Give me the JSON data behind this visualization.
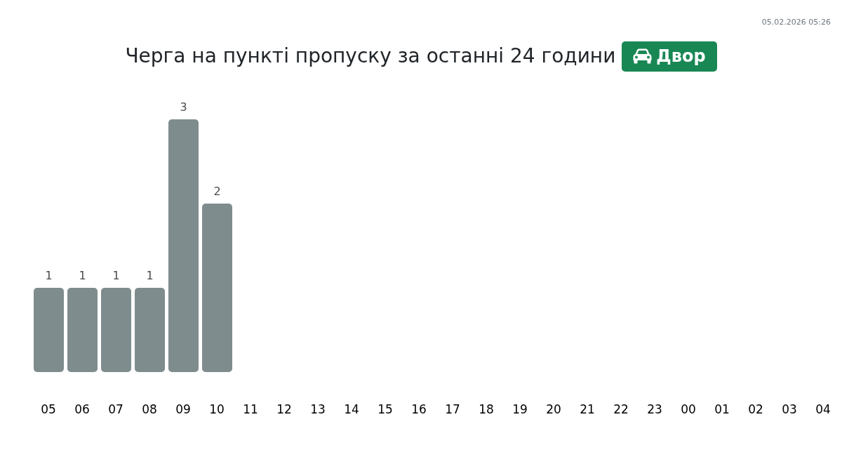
{
  "chart_data": {
    "type": "bar",
    "title": "Черга на пункті пропуску за останні 24 години",
    "subtitle": "Двор",
    "categories": [
      "05",
      "06",
      "07",
      "08",
      "09",
      "10",
      "11",
      "12",
      "13",
      "14",
      "15",
      "16",
      "17",
      "18",
      "19",
      "20",
      "21",
      "22",
      "23",
      "00",
      "01",
      "02",
      "03",
      "04"
    ],
    "values": [
      1,
      1,
      1,
      1,
      3,
      2,
      null,
      null,
      null,
      null,
      null,
      null,
      null,
      null,
      null,
      null,
      null,
      null,
      null,
      null,
      null,
      null,
      null,
      null
    ],
    "value_labels": [
      "1",
      "1",
      "1",
      "1",
      "3",
      "2",
      null,
      null,
      null,
      null,
      null,
      null,
      null,
      null,
      null,
      null,
      null,
      null,
      null,
      null,
      null,
      null,
      null,
      null
    ],
    "color": "#7f8c8d",
    "tick_labels": "x",
    "annotations": [
      "05.02.2026 05:26"
    ]
  }
}
